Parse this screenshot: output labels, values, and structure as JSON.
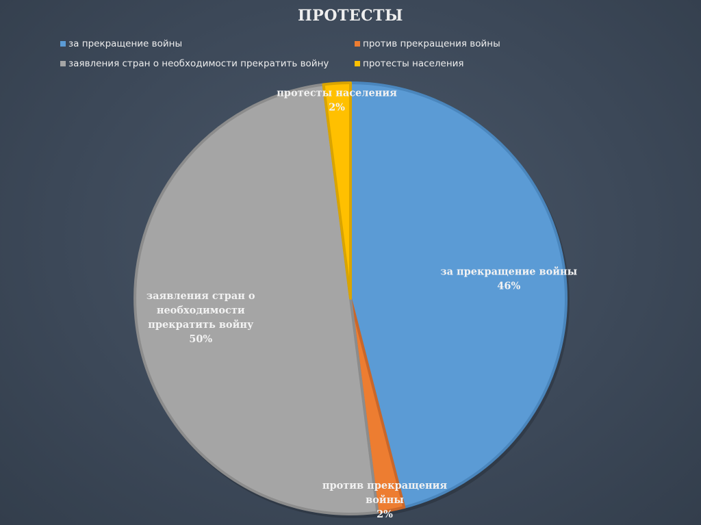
{
  "chart_data": {
    "type": "pie",
    "title": "ПРОТЕСТЫ",
    "categories": [
      "за прекращение войны",
      "против прекращения войны",
      "заявления стран о необходимости прекратить войну",
      "протесты населения"
    ],
    "values": [
      46,
      2,
      50,
      2
    ],
    "value_labels": [
      "46%",
      "2%",
      "50%",
      "2%"
    ],
    "slice_labels": [
      [
        "за прекращение войны"
      ],
      [
        "против прекращения",
        "войны"
      ],
      [
        "заявления стран о",
        "необходимости",
        "прекратить войну"
      ],
      [
        "протесты населения"
      ]
    ],
    "colors": [
      "#5b9bd5",
      "#ed7d31",
      "#a5a5a5",
      "#ffc000"
    ],
    "legend_position": "top"
  }
}
